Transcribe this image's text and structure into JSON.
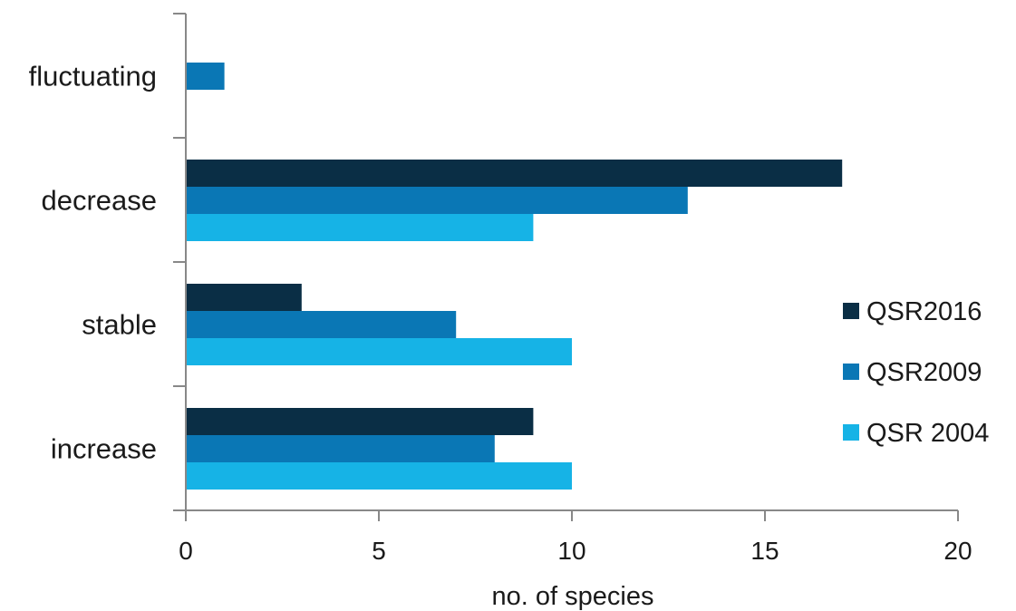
{
  "chart_data": {
    "type": "bar",
    "orientation": "horizontal",
    "categories": [
      "increase",
      "stable",
      "decrease",
      "fluctuating"
    ],
    "series": [
      {
        "name": "QSR2016",
        "color": "#0a2e45",
        "values": [
          9,
          3,
          17,
          0
        ]
      },
      {
        "name": "QSR2009",
        "color": "#0a77b5",
        "values": [
          8,
          7,
          13,
          1
        ]
      },
      {
        "name": "QSR 2004",
        "color": "#16b3e6",
        "values": [
          10,
          10,
          9,
          0
        ]
      }
    ],
    "xlabel": "no. of species",
    "xlim": [
      0,
      20
    ],
    "xticks": [
      "0",
      "5",
      "10",
      "15",
      "20"
    ],
    "grid": false,
    "legend_position": "right"
  }
}
